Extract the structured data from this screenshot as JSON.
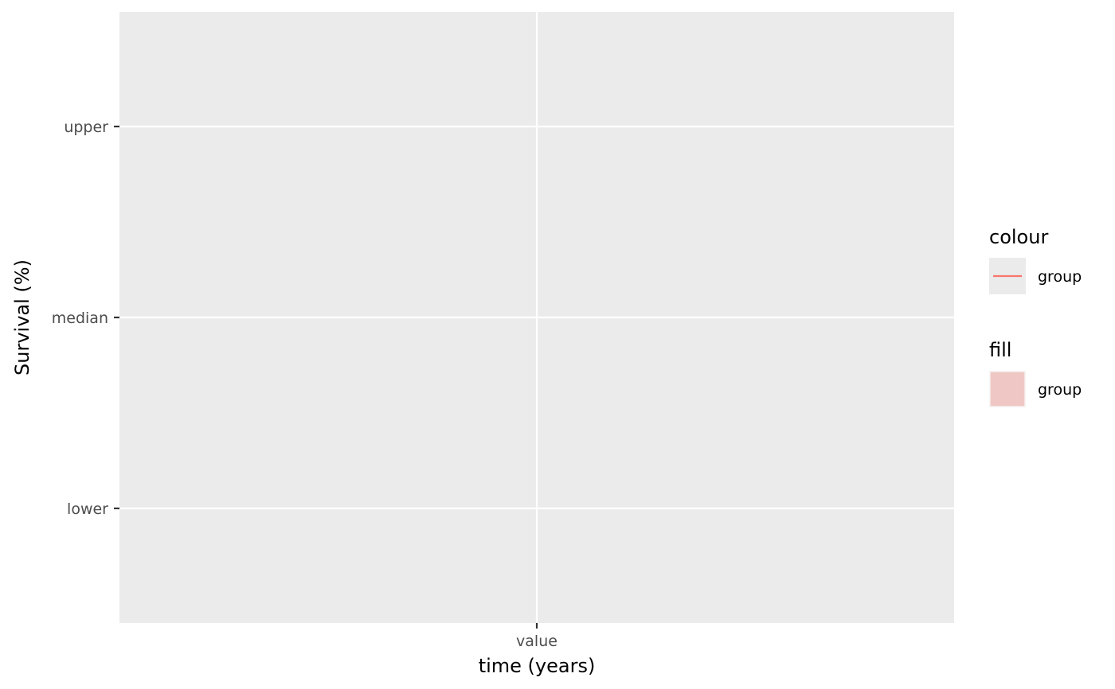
{
  "chart_data": {
    "type": "line",
    "title": "",
    "xlabel": "time (years)",
    "ylabel": "Survival (%)",
    "x_categories": [
      "value"
    ],
    "y_categories": [
      "lower",
      "median",
      "upper"
    ],
    "grid": true,
    "legend_position": "right",
    "series": [],
    "legends": [
      {
        "title": "colour",
        "entries": [
          {
            "label": "group",
            "kind": "line",
            "color": "#F8766D"
          }
        ]
      },
      {
        "title": "fill",
        "entries": [
          {
            "label": "group",
            "kind": "fill",
            "color": "#F8766D"
          }
        ]
      }
    ]
  },
  "colors": {
    "panel_background": "#EBEBEB",
    "grid_line": "#FFFFFF",
    "tick_text": "#4D4D4D",
    "tick_mark": "#333333",
    "line_color": "#F8766D",
    "fill_color": "#F8766D"
  }
}
